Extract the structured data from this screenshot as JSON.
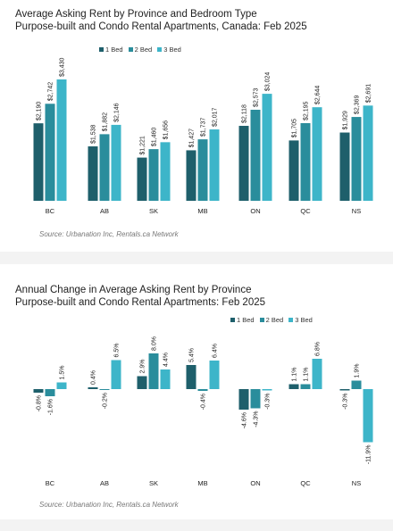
{
  "colors": {
    "bed1": "#1e5f6b",
    "bed2": "#2a8d9c",
    "bed3": "#3db5c9"
  },
  "chart_data": [
    {
      "type": "bar",
      "title": "Average Asking Rent by Province and Bedroom Type",
      "subtitle": "Purpose-built and Condo Rental Apartments, Canada: Feb 2025",
      "source": "Source: Urbanation Inc, Rentals.ca Network",
      "categories": [
        "BC",
        "AB",
        "SK",
        "MB",
        "ON",
        "QC",
        "NS"
      ],
      "series": [
        {
          "name": "1 Bed",
          "values": [
            2190,
            1538,
            1221,
            1427,
            2118,
            1705,
            1929
          ]
        },
        {
          "name": "2 Bed",
          "values": [
            2742,
            1882,
            1460,
            1737,
            2573,
            2195,
            2369
          ]
        },
        {
          "name": "3 Bed",
          "values": [
            3430,
            2146,
            1656,
            2017,
            3024,
            2644,
            2691
          ]
        }
      ],
      "labels": [
        [
          "$2,190",
          "$1,538",
          "$1,221",
          "$1,427",
          "$2,118",
          "$1,705",
          "$1,929"
        ],
        [
          "$2,742",
          "$1,882",
          "$1,460",
          "$1,737",
          "$2,573",
          "$2,195",
          "$2,369"
        ],
        [
          "$3,430",
          "$2,146",
          "$1,656",
          "$2,017",
          "$3,024",
          "$2,644",
          "$2,691"
        ]
      ],
      "ylim": [
        0,
        3500
      ],
      "legend": "top-center",
      "grid": false
    },
    {
      "type": "bar",
      "title": "Annual Change in Average Asking Rent by Province",
      "subtitle": "Purpose-built and Condo Rental Apartments: Feb 2025",
      "source": "Source: Urbanation Inc, Rentals.ca Network",
      "categories": [
        "BC",
        "AB",
        "SK",
        "MB",
        "ON",
        "QC",
        "NS"
      ],
      "series": [
        {
          "name": "1 Bed",
          "values": [
            -0.8,
            0.4,
            2.9,
            5.4,
            -4.6,
            1.1,
            -0.3
          ]
        },
        {
          "name": "2 Bed",
          "values": [
            -1.6,
            -0.2,
            8.0,
            -0.4,
            -4.3,
            1.1,
            1.9
          ]
        },
        {
          "name": "3 Bed",
          "values": [
            1.5,
            6.5,
            4.4,
            6.4,
            -0.3,
            6.8,
            -11.9
          ]
        }
      ],
      "labels": [
        [
          "-0.8%",
          "0.4%",
          "2.9%",
          "5.4%",
          "-4.6%",
          "1.1%",
          "-0.3%"
        ],
        [
          "-1.6%",
          "-0.2%",
          "8.0%",
          "-0.4%",
          "-4.3%",
          "1.1%",
          "1.9%"
        ],
        [
          "1.5%",
          "6.5%",
          "4.4%",
          "6.4%",
          "-0.3%",
          "6.8%",
          "-11.9%"
        ]
      ],
      "ylim": [
        -12,
        8
      ],
      "legend": "top-right",
      "grid": false
    }
  ]
}
